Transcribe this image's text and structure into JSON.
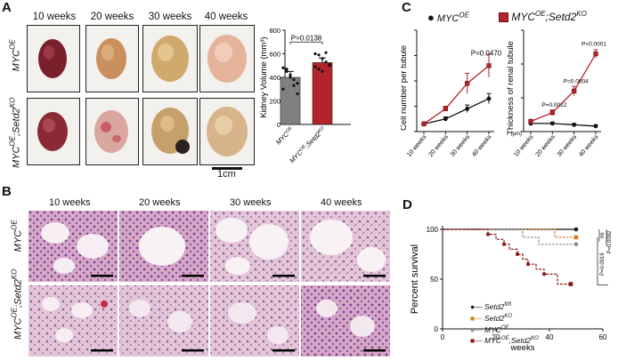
{
  "panels": {
    "a": "A",
    "b": "B",
    "c": "C",
    "d": "D"
  },
  "panel_a": {
    "columns": [
      "10 weeks",
      "20 weeks",
      "30 weeks",
      "40 weeks"
    ],
    "row_top": "MYC",
    "row_top_sup": "OE",
    "row_bottom": "MYC",
    "row_bottom_sup": "OE",
    "row_bottom_mid": ";Setd2",
    "row_bottom_sup2": "KO",
    "scalebar": "1cm"
  },
  "panel_b": {
    "columns": [
      "10 weeks",
      "20 weeks",
      "30 weeks",
      "40 weeks"
    ]
  },
  "colors": {
    "black": "#111111",
    "red": "#b3232b",
    "orange": "#d67a1e",
    "grey": "#8a8a8a",
    "darkred": "#8b1414"
  },
  "chart_data": [
    {
      "type": "bar",
      "panel": "A",
      "ylabel": "Kidney Volume (mm³)",
      "categories": [
        "MYC^OE",
        "MYC^OE;Setd2^KO"
      ],
      "values": [
        400,
        525
      ],
      "errors": [
        50,
        40
      ],
      "ylim": [
        0,
        800
      ],
      "yticks": [
        0,
        200,
        400,
        600,
        800
      ],
      "annotation": "P=0.0138",
      "points": [
        [
          480,
          450,
          420,
          380,
          350,
          300,
          470,
          400,
          330,
          260
        ],
        [
          600,
          590,
          560,
          530,
          510,
          490,
          470,
          450,
          610,
          500
        ]
      ]
    },
    {
      "type": "line",
      "panel": "C",
      "ylabel": "Cell number per tubule",
      "x": [
        "10 weeks",
        "20 weeks",
        "30 weeks",
        "40 weeks"
      ],
      "ylim": [
        0,
        400
      ],
      "yticks": [
        0,
        100,
        200,
        300,
        400
      ],
      "series": [
        {
          "name": "MYC^OE",
          "values": [
            30,
            50,
            90,
            130
          ],
          "errors": [
            5,
            8,
            15,
            20
          ]
        },
        {
          "name": "MYC^OE;Setd2^KO",
          "values": [
            30,
            90,
            190,
            260
          ],
          "errors": [
            8,
            10,
            40,
            45
          ]
        }
      ],
      "annotations": [
        "P=0.0470"
      ]
    },
    {
      "type": "line",
      "panel": "C",
      "ylabel": "Thickness of renal tubule",
      "yunit": "(µm)",
      "x": [
        "10 weeks",
        "20 weeks",
        "30 weeks",
        "40 weeks"
      ],
      "ylim": [
        0,
        150
      ],
      "yticks": [
        0,
        50,
        100,
        150
      ],
      "series": [
        {
          "name": "MYC^OE",
          "values": [
            12,
            12,
            10,
            8
          ],
          "errors": [
            2,
            2,
            2,
            2
          ]
        },
        {
          "name": "MYC^OE;Setd2^KO",
          "values": [
            15,
            28,
            60,
            115
          ],
          "errors": [
            3,
            4,
            7,
            6
          ]
        }
      ],
      "annotations": [
        "P=0.0012",
        "P=0.0004",
        "P<0.0001"
      ]
    },
    {
      "type": "line",
      "panel": "D",
      "xlabel": "weeks",
      "ylabel": "Percent survival",
      "xlim": [
        0,
        60
      ],
      "ylim": [
        0,
        100
      ],
      "xticks": [
        0,
        20,
        40,
        60
      ],
      "yticks": [
        0,
        50,
        100
      ],
      "series": [
        {
          "name": "Setd2^fl/fl",
          "x": [
            0,
            50
          ],
          "values": [
            100,
            100
          ]
        },
        {
          "name": "Setd2^KO",
          "x": [
            0,
            42,
            42,
            50
          ],
          "values": [
            100,
            100,
            92,
            92
          ]
        },
        {
          "name": "MYC^OE",
          "x": [
            0,
            30,
            30,
            36,
            36,
            50
          ],
          "values": [
            100,
            100,
            92,
            92,
            85,
            85
          ]
        },
        {
          "name": "MYC^OE;Setd2^KO",
          "x": [
            0,
            17,
            17,
            20,
            20,
            23,
            23,
            25,
            25,
            28,
            28,
            30,
            30,
            32,
            32,
            35,
            35,
            38,
            38,
            43,
            43,
            48
          ],
          "values": [
            100,
            100,
            95,
            95,
            90,
            90,
            85,
            85,
            80,
            80,
            75,
            75,
            70,
            70,
            65,
            65,
            60,
            60,
            55,
            55,
            45,
            45
          ]
        }
      ],
      "annotations": [
        "ns",
        "P=0.0092",
        "P=0.0019"
      ],
      "legend": "bottom-left"
    }
  ],
  "legend_c": {
    "item1": "MYC",
    "item1_sup": "OE",
    "item2": "MYC",
    "item2_sup": "OE",
    "item2_mid": ";Setd2",
    "item2_sup2": "KO"
  },
  "legend_d": {
    "l1": "Setd2",
    "l1_sup": "fl/fl",
    "l2": "Setd2",
    "l2_sup": "KO",
    "l3": "MYC",
    "l3_sup": "OE",
    "l4": "MYC",
    "l4_sup": "OE",
    "l4_mid": ";Setd2",
    "l4_sup2": "KO"
  }
}
